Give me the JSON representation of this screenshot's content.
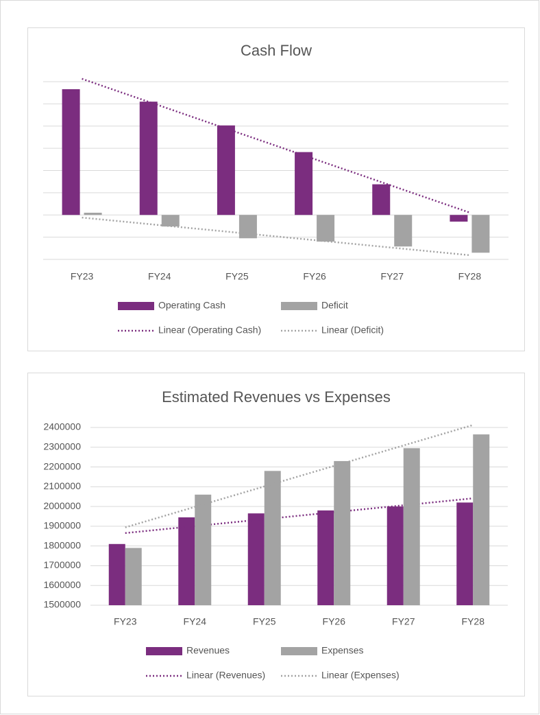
{
  "chart_data": [
    {
      "type": "bar",
      "title": "Cash Flow",
      "categories": [
        "FY23",
        "FY24",
        "FY25",
        "FY26",
        "FY27",
        "FY28"
      ],
      "series": [
        {
          "name": "Operating Cash",
          "color": "#7b2d7f",
          "values": [
            5.66,
            5.1,
            4.03,
            2.83,
            1.38,
            -0.3
          ],
          "trendline": {
            "name": "Linear (Operating Cash)",
            "color": "#7b2d7f"
          }
        },
        {
          "name": "Deficit",
          "color": "#a3a3a3",
          "values": [
            0.1,
            -0.52,
            -1.05,
            -1.2,
            -1.42,
            -1.7
          ],
          "trendline": {
            "name": "Linear (Deficit)",
            "color": "#a3a3a3"
          }
        }
      ],
      "ylim": [
        -2,
        6
      ],
      "yticks": [
        -2,
        -1,
        0,
        1,
        2,
        3,
        4,
        5,
        6
      ],
      "show_tick_labels": false,
      "grid": true,
      "legend": "bottom"
    },
    {
      "type": "bar",
      "title": "Estimated Revenues vs Expenses",
      "categories": [
        "FY23",
        "FY24",
        "FY25",
        "FY26",
        "FY27",
        "FY28"
      ],
      "series": [
        {
          "name": "Revenues",
          "color": "#7b2d7f",
          "values": [
            1810000,
            1945000,
            1965000,
            1980000,
            2000000,
            2020000
          ],
          "trendline": {
            "name": "Linear (Revenues)",
            "color": "#7b2d7f"
          }
        },
        {
          "name": "Expenses",
          "color": "#a3a3a3",
          "values": [
            1790000,
            2060000,
            2180000,
            2230000,
            2295000,
            2365000
          ],
          "trendline": {
            "name": "Linear (Expenses)",
            "color": "#a3a3a3"
          }
        }
      ],
      "ylim": [
        1500000,
        2400000
      ],
      "yticks": [
        1500000,
        1600000,
        1700000,
        1800000,
        1900000,
        2000000,
        2100000,
        2200000,
        2300000,
        2400000
      ],
      "show_tick_labels": true,
      "grid": true,
      "legend": "bottom"
    }
  ]
}
